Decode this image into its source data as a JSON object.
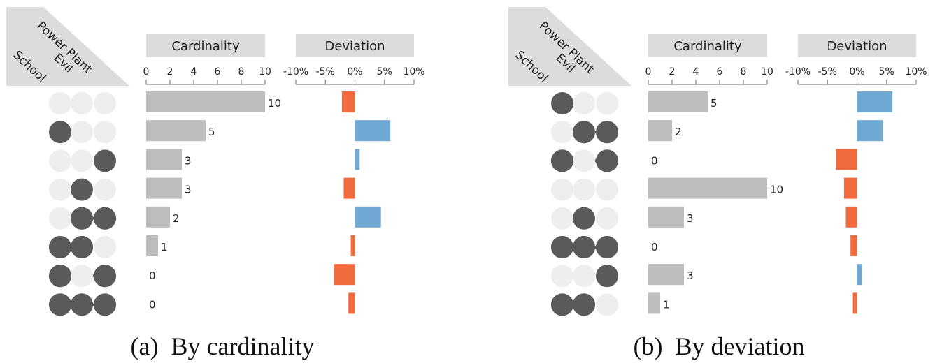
{
  "colors": {
    "header_bg": "#dcdcdc",
    "bar_gray": "#bdbdbd",
    "dot_on": "#5a5a5a",
    "dot_off": "#eeeeee",
    "positive": "#6fa8d2",
    "negative": "#f26b3f",
    "axis": "#888888",
    "text": "#222222"
  },
  "set_names": [
    "School",
    "Evil",
    "Power Plant"
  ],
  "chart_data": [
    {
      "type": "bar",
      "caption": "(a)  By cardinality",
      "cardinality_header": "Cardinality",
      "deviation_header": "Deviation",
      "cardinality_ticks": [
        0,
        2,
        4,
        6,
        8,
        10
      ],
      "cardinality_range": [
        0,
        10
      ],
      "deviation_ticks": [
        "-10%",
        "-5%",
        "0%",
        "5%",
        "10%"
      ],
      "deviation_range": [
        -10,
        10
      ],
      "rows": [
        {
          "sets": [
            0,
            0,
            0
          ],
          "cardinality": 10,
          "label": "10",
          "deviation": -2.2
        },
        {
          "sets": [
            1,
            0,
            0
          ],
          "cardinality": 5,
          "label": "5",
          "deviation": 6.0
        },
        {
          "sets": [
            0,
            0,
            1
          ],
          "cardinality": 3,
          "label": "3",
          "deviation": 0.8
        },
        {
          "sets": [
            0,
            1,
            0
          ],
          "cardinality": 3,
          "label": "3",
          "deviation": -1.9
        },
        {
          "sets": [
            0,
            1,
            1
          ],
          "cardinality": 2,
          "label": "2",
          "deviation": 4.4
        },
        {
          "sets": [
            1,
            1,
            0
          ],
          "cardinality": 1,
          "label": "1",
          "deviation": -0.7
        },
        {
          "sets": [
            1,
            0,
            1
          ],
          "cardinality": 0,
          "label": "0",
          "deviation": -3.6
        },
        {
          "sets": [
            1,
            1,
            1
          ],
          "cardinality": 0,
          "label": "0",
          "deviation": -1.1
        }
      ]
    },
    {
      "type": "bar",
      "caption": "(b)  By deviation",
      "cardinality_header": "Cardinality",
      "deviation_header": "Deviation",
      "cardinality_ticks": [
        0,
        2,
        4,
        6,
        8,
        10
      ],
      "cardinality_range": [
        0,
        10
      ],
      "deviation_ticks": [
        "-10%",
        "-5%",
        "0%",
        "5%",
        "10%"
      ],
      "deviation_range": [
        -10,
        10
      ],
      "rows": [
        {
          "sets": [
            1,
            0,
            0
          ],
          "cardinality": 5,
          "label": "5",
          "deviation": 6.0
        },
        {
          "sets": [
            0,
            1,
            1
          ],
          "cardinality": 2,
          "label": "2",
          "deviation": 4.4
        },
        {
          "sets": [
            1,
            0,
            1
          ],
          "cardinality": 0,
          "label": "0",
          "deviation": -3.6
        },
        {
          "sets": [
            0,
            0,
            0
          ],
          "cardinality": 10,
          "label": "10",
          "deviation": -2.2
        },
        {
          "sets": [
            0,
            1,
            0
          ],
          "cardinality": 3,
          "label": "3",
          "deviation": -1.9
        },
        {
          "sets": [
            1,
            1,
            1
          ],
          "cardinality": 0,
          "label": "0",
          "deviation": -1.1
        },
        {
          "sets": [
            0,
            0,
            1
          ],
          "cardinality": 3,
          "label": "3",
          "deviation": 0.8
        },
        {
          "sets": [
            1,
            1,
            0
          ],
          "cardinality": 1,
          "label": "1",
          "deviation": -0.7
        }
      ]
    }
  ]
}
